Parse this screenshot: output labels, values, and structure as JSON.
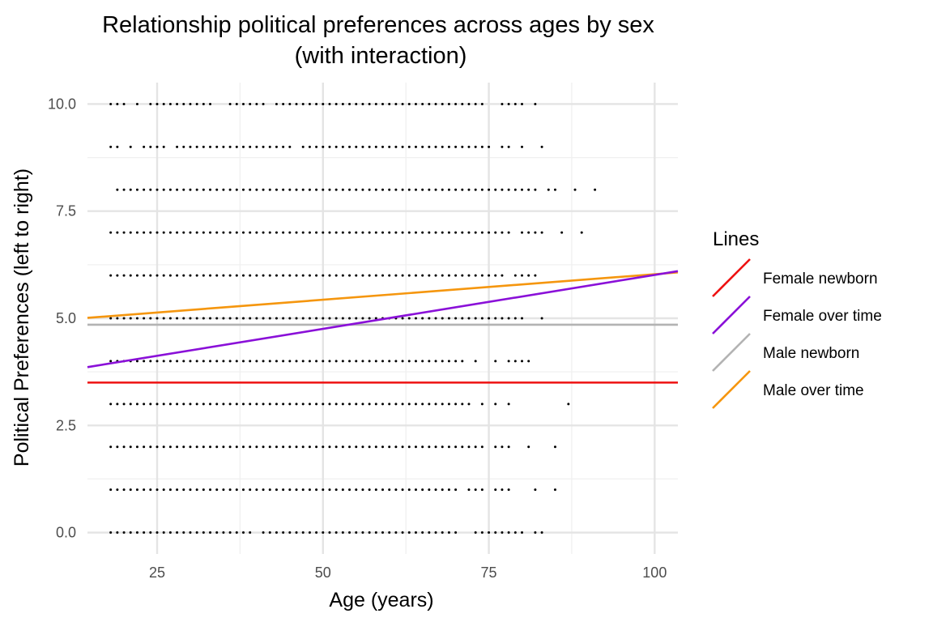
{
  "chart_data": {
    "type": "scatter",
    "title": "Relationship political preferences across ages by sex",
    "subtitle": "(with interaction)",
    "xlabel": "Age (years)",
    "ylabel": "Political Preferences (left to right)",
    "xlim": [
      14.5,
      103.5
    ],
    "ylim": [
      -0.5,
      10.5
    ],
    "xticks": [
      25,
      50,
      75,
      100
    ],
    "xtick_labels": [
      "25",
      "50",
      "75",
      "100"
    ],
    "yticks": [
      0,
      2.5,
      5,
      7.5,
      10
    ],
    "ytick_labels": [
      "0.0",
      "2.5",
      "5.0",
      "7.5",
      "10.0"
    ],
    "grid": true,
    "legend_position": "right",
    "legend_title": "Lines",
    "points": [
      {
        "y": 10,
        "ranges": [
          [
            18,
            20
          ],
          [
            22,
            22
          ],
          [
            24,
            33
          ],
          [
            36,
            41
          ],
          [
            43,
            74
          ],
          [
            77,
            80
          ],
          [
            82,
            82
          ]
        ]
      },
      {
        "y": 9,
        "ranges": [
          [
            18,
            19
          ],
          [
            21,
            21
          ],
          [
            23,
            26
          ],
          [
            28,
            45
          ],
          [
            47,
            75
          ],
          [
            77,
            78
          ],
          [
            80,
            80
          ],
          [
            83,
            83
          ]
        ]
      },
      {
        "y": 8,
        "ranges": [
          [
            19,
            82
          ],
          [
            84,
            85
          ],
          [
            88,
            88
          ],
          [
            91,
            91
          ]
        ]
      },
      {
        "y": 7,
        "ranges": [
          [
            18,
            78
          ],
          [
            80,
            83
          ],
          [
            86,
            86
          ],
          [
            89,
            89
          ]
        ]
      },
      {
        "y": 6,
        "ranges": [
          [
            18,
            77
          ],
          [
            79,
            82
          ]
        ]
      },
      {
        "y": 5,
        "ranges": [
          [
            18,
            80
          ],
          [
            83,
            83
          ]
        ]
      },
      {
        "y": 4,
        "ranges": [
          [
            18,
            71
          ],
          [
            73,
            73
          ],
          [
            76,
            76
          ],
          [
            78,
            81
          ]
        ]
      },
      {
        "y": 3,
        "ranges": [
          [
            18,
            72
          ],
          [
            74,
            74
          ],
          [
            76,
            76
          ],
          [
            78,
            78
          ],
          [
            87,
            87
          ]
        ]
      },
      {
        "y": 2,
        "ranges": [
          [
            18,
            74
          ],
          [
            76,
            78
          ],
          [
            81,
            81
          ],
          [
            85,
            85
          ]
        ]
      },
      {
        "y": 1,
        "ranges": [
          [
            18,
            70
          ],
          [
            72,
            74
          ],
          [
            76,
            78
          ],
          [
            82,
            82
          ],
          [
            85,
            85
          ]
        ]
      },
      {
        "y": 0,
        "ranges": [
          [
            18,
            39
          ],
          [
            41,
            70
          ],
          [
            73,
            80
          ],
          [
            82,
            83
          ]
        ]
      }
    ],
    "series": [
      {
        "name": "Female newborn",
        "color": "#ee1111",
        "x": [
          14.5,
          103.5
        ],
        "y": [
          3.5,
          3.5
        ]
      },
      {
        "name": "Female over time",
        "color": "#8a10d8",
        "x": [
          14.5,
          103.5
        ],
        "y": [
          3.86,
          6.1
        ]
      },
      {
        "name": "Male newborn",
        "color": "#b3b3b3",
        "x": [
          14.5,
          103.5
        ],
        "y": [
          4.85,
          4.85
        ]
      },
      {
        "name": "Male over time",
        "color": "#f5960e",
        "x": [
          14.5,
          103.5
        ],
        "y": [
          5.01,
          6.07
        ]
      }
    ]
  }
}
